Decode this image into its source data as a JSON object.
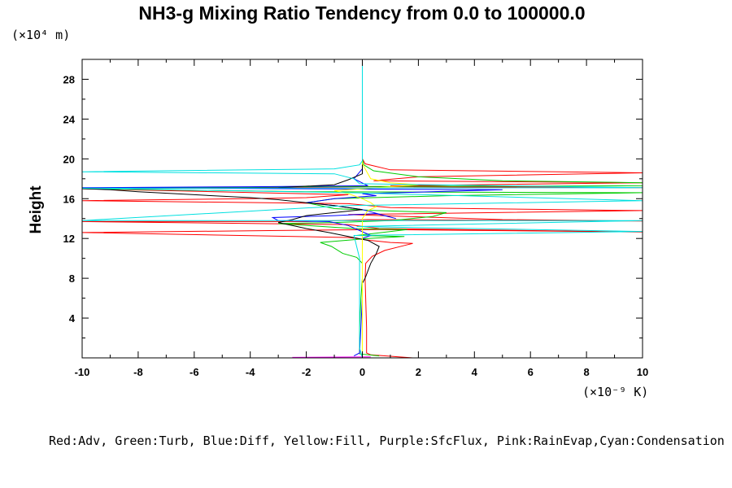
{
  "page": {
    "title": "NH3-g Mixing Ratio Tendency from 0.0 to 100000.0",
    "y_unit": "(×10⁴ m)",
    "x_unit": "(×10⁻⁹ K)",
    "legend": "Red:Adv, Green:Turb, Blue:Diff, Yellow:Fill, Purple:SfcFlux, Pink:RainEvap,Cyan:Condensation"
  },
  "chart_data": {
    "type": "line",
    "title": "NH3-g Mixing Ratio Tendency from 0.0 to 100000.0",
    "xlabel": "",
    "ylabel": "Height",
    "x_unit": "(×10⁻⁹ K)",
    "y_unit": "(×10⁴ m)",
    "xlim": [
      -10,
      10
    ],
    "ylim": [
      0,
      30
    ],
    "xticks": [
      -10,
      -8,
      -6,
      -4,
      -2,
      0,
      2,
      4,
      6,
      8,
      10
    ],
    "yticks": [
      4,
      8,
      12,
      16,
      20,
      24,
      28
    ],
    "grid": false,
    "legend_text": "Red:Adv, Green:Turb, Blue:Diff, Yellow:Fill, Purple:SfcFlux, Pink:RainEvap,Cyan:Condensation",
    "series": [
      {
        "color": "#ff0000",
        "points": [
          [
            1.8,
            0
          ],
          [
            0.3,
            0.3
          ],
          [
            0.15,
            0.5
          ],
          [
            0.15,
            3
          ],
          [
            0.12,
            6
          ],
          [
            0.1,
            8
          ],
          [
            0.12,
            9.5
          ],
          [
            0.35,
            10.2
          ],
          [
            0.8,
            10.8
          ],
          [
            1.5,
            11.3
          ],
          [
            1.8,
            11.5
          ],
          [
            1.0,
            11.6
          ],
          [
            0.3,
            11.8
          ],
          [
            -0.5,
            12.1
          ],
          [
            -10,
            12.6
          ],
          [
            -3,
            12.8
          ],
          [
            0.6,
            12.9
          ],
          [
            10,
            12.65
          ],
          [
            0.6,
            13.0
          ],
          [
            -0.5,
            13.4
          ],
          [
            -10,
            13.7
          ],
          [
            -2,
            13.7
          ],
          [
            0.2,
            13.9
          ],
          [
            10,
            13.75
          ],
          [
            5,
            13.9
          ],
          [
            -0.5,
            14.4
          ],
          [
            10,
            14.8
          ],
          [
            1,
            15.1
          ],
          [
            -0.5,
            15.5
          ],
          [
            -10,
            15.8
          ],
          [
            -4,
            16.0
          ],
          [
            -2,
            16.1
          ],
          [
            -0.5,
            16.4
          ],
          [
            -10,
            17.0
          ],
          [
            0.4,
            17.2
          ],
          [
            10,
            17.1
          ],
          [
            1,
            17.3
          ],
          [
            10,
            17.6
          ],
          [
            0.4,
            17.8
          ],
          [
            2,
            18.2
          ],
          [
            10,
            18.6
          ],
          [
            1,
            18.9
          ],
          [
            0.1,
            19.5
          ],
          [
            0,
            20
          ],
          [
            0,
            30
          ]
        ]
      },
      {
        "color": "#00cc00",
        "points": [
          [
            0.6,
            0.2
          ],
          [
            -0.1,
            0.4
          ],
          [
            -0.1,
            3
          ],
          [
            -0.05,
            6
          ],
          [
            0,
            8
          ],
          [
            0,
            9.5
          ],
          [
            -0.2,
            10.1
          ],
          [
            -0.7,
            10.5
          ],
          [
            -1.1,
            11.2
          ],
          [
            -1.5,
            11.6
          ],
          [
            0.2,
            12.0
          ],
          [
            1.5,
            12.2
          ],
          [
            -0.2,
            12.3
          ],
          [
            1.6,
            12.9
          ],
          [
            -0.3,
            13.0
          ],
          [
            -3,
            13.5
          ],
          [
            -1,
            13.6
          ],
          [
            1,
            13.8
          ],
          [
            2.5,
            14.2
          ],
          [
            3,
            14.6
          ],
          [
            0.5,
            14.8
          ],
          [
            -1,
            15.0
          ],
          [
            -2,
            15.6
          ],
          [
            -1,
            16.0
          ],
          [
            3,
            16.3
          ],
          [
            10,
            16.6
          ],
          [
            -2,
            16.7
          ],
          [
            -10,
            17.0
          ],
          [
            -3,
            17.2
          ],
          [
            10,
            17.3
          ],
          [
            10,
            17.6
          ],
          [
            5,
            17.8
          ],
          [
            2,
            18.2
          ],
          [
            0.4,
            18.8
          ],
          [
            0.05,
            19.4
          ],
          [
            0,
            20
          ],
          [
            0,
            30
          ]
        ]
      },
      {
        "color": "#0000ff",
        "points": [
          [
            -0.3,
            0.2
          ],
          [
            -0.1,
            0.5
          ],
          [
            0,
            6
          ],
          [
            0,
            12
          ],
          [
            0.3,
            12.3
          ],
          [
            -0.5,
            13.3
          ],
          [
            -1.2,
            13.7
          ],
          [
            -3,
            13.8
          ],
          [
            -3.2,
            14.1
          ],
          [
            -1,
            14.3
          ],
          [
            0.5,
            14.5
          ],
          [
            1.2,
            14.0
          ],
          [
            0,
            14.9
          ],
          [
            -1,
            15.3
          ],
          [
            -2,
            15.6
          ],
          [
            -1,
            16.0
          ],
          [
            0.5,
            16.3
          ],
          [
            0,
            16.5
          ],
          [
            5,
            16.9
          ],
          [
            -10,
            17.1
          ],
          [
            -4,
            17.2
          ],
          [
            0.2,
            17.3
          ],
          [
            -0.3,
            18.0
          ],
          [
            0,
            19
          ],
          [
            0,
            30
          ]
        ]
      },
      {
        "color": "#000000",
        "points": [
          [
            0,
            0.5
          ],
          [
            0,
            7.5
          ],
          [
            0.1,
            8
          ],
          [
            0.3,
            9.5
          ],
          [
            0.5,
            10.5
          ],
          [
            0.6,
            11.2
          ],
          [
            0.2,
            11.8
          ],
          [
            -0.5,
            12.2
          ],
          [
            -1.2,
            12.6
          ],
          [
            -2,
            13.0
          ],
          [
            -2.5,
            13.3
          ],
          [
            -3,
            13.6
          ],
          [
            -2.5,
            13.9
          ],
          [
            -2,
            14.3
          ],
          [
            -1,
            14.6
          ],
          [
            0,
            14.9
          ],
          [
            -1,
            15.3
          ],
          [
            -2,
            15.6
          ],
          [
            -3,
            15.9
          ],
          [
            -4,
            16.1
          ],
          [
            -6,
            16.4
          ],
          [
            -8,
            16.7
          ],
          [
            -9,
            16.9
          ],
          [
            -10,
            17.0
          ],
          [
            -3,
            17.1
          ],
          [
            -1,
            17.4
          ],
          [
            -0.5,
            17.9
          ],
          [
            0,
            18.5
          ],
          [
            0,
            30
          ]
        ]
      },
      {
        "color": "#ffff00",
        "points": [
          [
            0,
            0.5
          ],
          [
            0,
            14
          ],
          [
            0.2,
            14.8
          ],
          [
            0.5,
            15.2
          ],
          [
            0.3,
            15.6
          ],
          [
            0,
            16
          ],
          [
            -0.5,
            16.5
          ],
          [
            -1,
            16.8
          ],
          [
            1,
            17.2
          ],
          [
            2,
            17.4
          ],
          [
            1,
            17.6
          ],
          [
            0.3,
            18.0
          ],
          [
            0.2,
            18.5
          ],
          [
            0,
            19.5
          ],
          [
            0,
            30
          ]
        ]
      },
      {
        "color": "#ff00ff",
        "points": [
          [
            -2.5,
            0.05
          ],
          [
            0.3,
            0.1
          ]
        ]
      },
      {
        "color": "#00e0e0",
        "points": [
          [
            0,
            30
          ],
          [
            0,
            19.8
          ],
          [
            -0.1,
            19.4
          ],
          [
            -1,
            19.0
          ],
          [
            -10,
            18.7
          ],
          [
            -1,
            18.5
          ],
          [
            -0.3,
            18.0
          ],
          [
            -0.1,
            17.5
          ],
          [
            10,
            17.1
          ],
          [
            -10,
            17.05
          ],
          [
            -0.5,
            16.6
          ],
          [
            10,
            15.8
          ],
          [
            -0.5,
            15.3
          ],
          [
            -10,
            13.8
          ],
          [
            10,
            13.8
          ],
          [
            -0.2,
            13.2
          ],
          [
            10,
            12.7
          ],
          [
            -0.3,
            12.3
          ],
          [
            -0.1,
            10
          ],
          [
            -0.1,
            1
          ],
          [
            0,
            0
          ]
        ]
      }
    ]
  }
}
